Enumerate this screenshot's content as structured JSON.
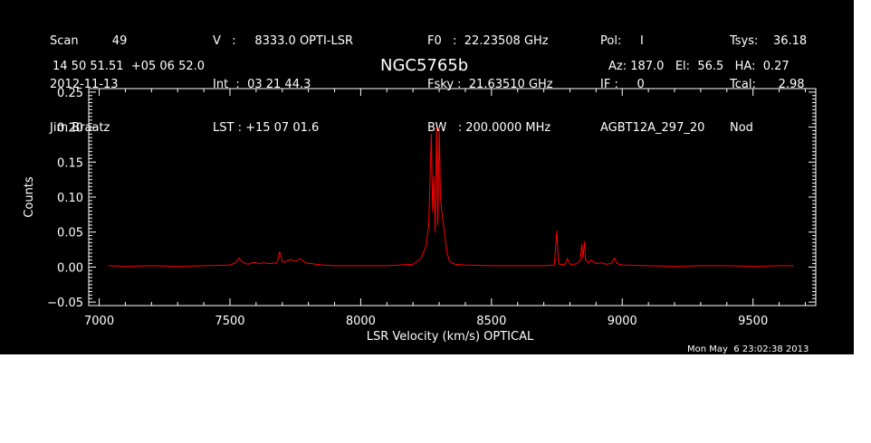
{
  "header": {
    "col1": [
      "Scan         49",
      "2012-11-13",
      "Jim Braatz"
    ],
    "col2": [
      "V   :     8333.0 OPTI-LSR",
      "Int  :  03 21 44.3",
      "LST : +15 07 01.6"
    ],
    "col3": [
      "F0   :  22.23508 GHz",
      "Fsky :  21.63510 GHz",
      "BW   : 200.0000 MHz"
    ],
    "col4": [
      "Pol:     I",
      "IF :     0",
      "AGBT12A_297_20"
    ],
    "col5": [
      "Tsys:    36.18",
      "Tcal:      2.98",
      "Nod"
    ],
    "coords": "14 50 51.51  +05 06 52.0",
    "source": "NGC5765b",
    "azel": "Az: 187.0   El:  56.5   HA:  0.27"
  },
  "footer": {
    "timestamp": "Mon May  6 23:02:38 2013"
  },
  "colors": {
    "background": "#000000",
    "axes": "#ffffff",
    "trace": "#ff0000"
  },
  "chart_data": {
    "type": "line",
    "xlabel": "LSR Velocity (km/s) OPTICAL",
    "ylabel": "Counts",
    "xlim": [
      6960,
      9740
    ],
    "ylim": [
      -0.055,
      0.255
    ],
    "xticks": [
      7000,
      7500,
      8000,
      8500,
      9000,
      9500
    ],
    "xtick_labels": [
      "7000",
      "7500",
      "8000",
      "8500",
      "9000",
      "9500"
    ],
    "yticks": [
      -0.05,
      0.0,
      0.05,
      0.1,
      0.15,
      0.2,
      0.25
    ],
    "ytick_labels": [
      "−0.05",
      "0.00",
      "0.05",
      "0.10",
      "0.15",
      "0.20",
      "0.25"
    ],
    "series": [
      {
        "color": "#ff0000",
        "x": [
          7035,
          7100,
          7200,
          7300,
          7400,
          7500,
          7520,
          7535,
          7545,
          7555,
          7570,
          7590,
          7610,
          7630,
          7650,
          7680,
          7690,
          7700,
          7710,
          7730,
          7750,
          7770,
          7790,
          7810,
          7850,
          7900,
          8000,
          8100,
          8150,
          8200,
          8230,
          8250,
          8260,
          8270,
          8275,
          8280,
          8285,
          8290,
          8295,
          8300,
          8305,
          8310,
          8320,
          8330,
          8340,
          8360,
          8400,
          8500,
          8600,
          8700,
          8740,
          8750,
          8755,
          8760,
          8780,
          8790,
          8800,
          8820,
          8840,
          8845,
          8850,
          8855,
          8860,
          8870,
          8880,
          8900,
          8920,
          8940,
          8960,
          8970,
          8980,
          9000,
          9100,
          9200,
          9300,
          9400,
          9500,
          9600,
          9655
        ],
        "y": [
          0.002,
          0.001,
          0.002,
          0.001,
          0.002,
          0.003,
          0.006,
          0.013,
          0.008,
          0.006,
          0.004,
          0.007,
          0.005,
          0.006,
          0.005,
          0.006,
          0.022,
          0.008,
          0.007,
          0.011,
          0.008,
          0.012,
          0.006,
          0.005,
          0.003,
          0.002,
          0.002,
          0.002,
          0.003,
          0.004,
          0.012,
          0.03,
          0.06,
          0.19,
          0.08,
          0.13,
          0.05,
          0.2,
          0.06,
          0.2,
          0.1,
          0.08,
          0.05,
          0.02,
          0.008,
          0.004,
          0.003,
          0.002,
          0.002,
          0.002,
          0.003,
          0.052,
          0.01,
          0.004,
          0.003,
          0.012,
          0.004,
          0.004,
          0.009,
          0.033,
          0.012,
          0.037,
          0.01,
          0.006,
          0.01,
          0.005,
          0.006,
          0.004,
          0.006,
          0.013,
          0.005,
          0.003,
          0.002,
          0.001,
          0.002,
          0.002,
          0.001,
          0.002,
          0.002
        ]
      }
    ]
  }
}
